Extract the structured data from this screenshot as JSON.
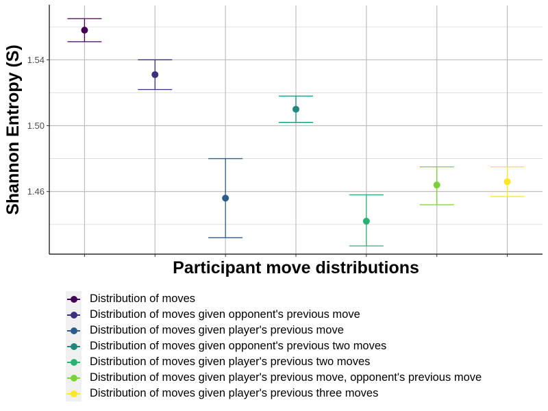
{
  "chart_data": {
    "type": "scatter",
    "title": "",
    "xlabel": "Participant move distributions",
    "ylabel": "Shannon Entropy (S)",
    "ylim": [
      1.422,
      1.573
    ],
    "yticks": [
      1.46,
      1.5,
      1.54
    ],
    "ytick_labels": [
      "1.46",
      "1.50",
      "1.54"
    ],
    "grid": true,
    "legend_position": "bottom",
    "series": [
      {
        "name": "Distribution of moves",
        "color": "#440154",
        "y": 1.558,
        "lower": 1.551,
        "upper": 1.565
      },
      {
        "name": "Distribution of moves given opponent's previous move",
        "color": "#3B2F7F",
        "y": 1.531,
        "lower": 1.522,
        "upper": 1.54
      },
      {
        "name": "Distribution of moves given player's previous move",
        "color": "#2B5C8A",
        "y": 1.456,
        "lower": 1.432,
        "upper": 1.48
      },
      {
        "name": "Distribution of moves given opponent's previous two moves",
        "color": "#21867D",
        "y": 1.51,
        "lower": 1.502,
        "upper": 1.518
      },
      {
        "name": "Distribution of moves given player's previous two moves",
        "color": "#2BB273",
        "y": 1.442,
        "lower": 1.427,
        "upper": 1.458
      },
      {
        "name": "Distribution of moves given player's previous move, opponent's previous move",
        "color": "#7AD23A",
        "y": 1.464,
        "lower": 1.452,
        "upper": 1.475
      },
      {
        "name": "Distribution of moves given player's previous three moves",
        "color": "#FDE725",
        "y": 1.466,
        "lower": 1.457,
        "upper": 1.475
      }
    ]
  }
}
